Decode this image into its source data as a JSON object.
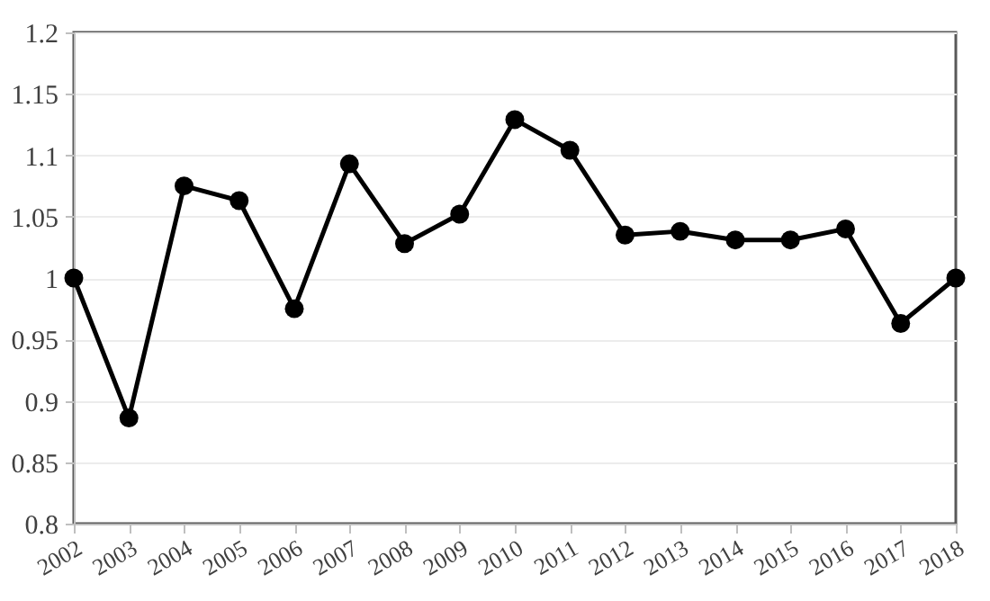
{
  "chart_data": {
    "type": "line",
    "categories": [
      "2002",
      "2003",
      "2004",
      "2005",
      "2006",
      "2007",
      "2008",
      "2009",
      "2010",
      "2011",
      "2012",
      "2013",
      "2014",
      "2015",
      "2016",
      "2017",
      "2018"
    ],
    "series": [
      {
        "color": "#000000",
        "values": [
          1.0,
          0.886,
          1.075,
          1.063,
          0.975,
          1.093,
          1.028,
          1.052,
          1.129,
          1.104,
          1.035,
          1.038,
          1.031,
          1.031,
          1.04,
          0.963,
          1.0
        ]
      }
    ],
    "ylim": [
      0.8,
      1.2
    ],
    "yticks": [
      0.8,
      0.85,
      0.9,
      0.95,
      1,
      1.05,
      1.1,
      1.15,
      1.2
    ],
    "grid": "y",
    "marker": "circle",
    "line_style": "solid",
    "legend": false
  }
}
